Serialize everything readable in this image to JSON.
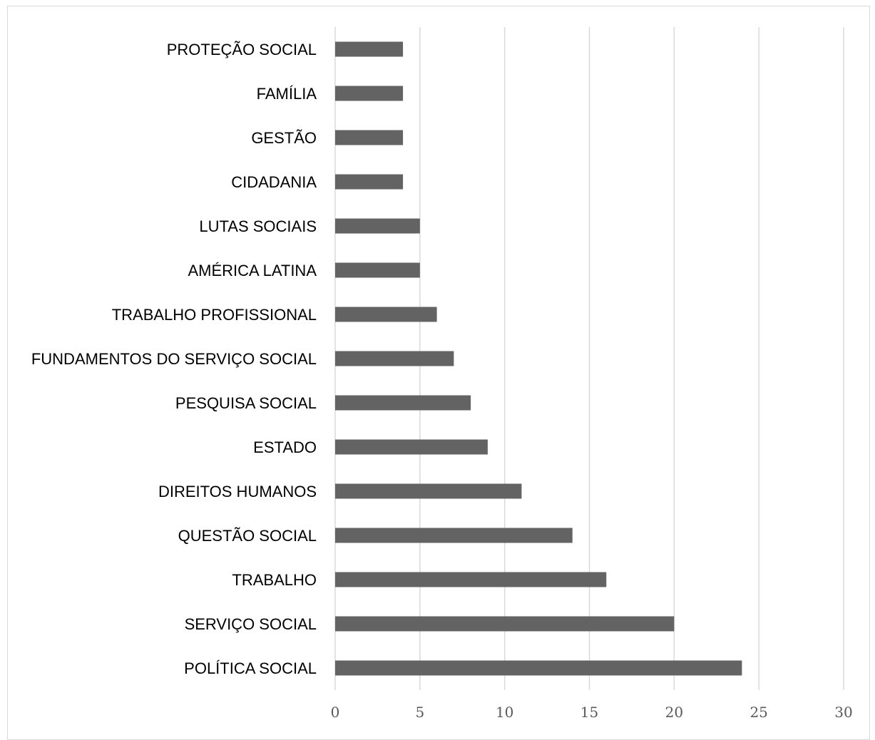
{
  "chart_data": {
    "type": "bar",
    "orientation": "horizontal",
    "categories": [
      "POLÍTICA SOCIAL",
      "SERVIÇO SOCIAL",
      "TRABALHO",
      "QUESTÃO SOCIAL",
      "DIREITOS HUMANOS",
      "ESTADO",
      "PESQUISA SOCIAL",
      "FUNDAMENTOS DO SERVIÇO SOCIAL",
      "TRABALHO PROFISSIONAL",
      "AMÉRICA LATINA",
      "LUTAS SOCIAIS",
      "CIDADANIA",
      "GESTÃO",
      "FAMÍLIA",
      "PROTEÇÃO SOCIAL"
    ],
    "values": [
      24,
      20,
      16,
      14,
      11,
      9,
      8,
      7,
      6,
      5,
      5,
      4,
      4,
      4,
      4
    ],
    "xlim": [
      0,
      30
    ],
    "xticks": [
      0,
      5,
      10,
      15,
      20,
      25,
      30
    ],
    "grid": true,
    "bar_color": "#636363",
    "grid_color": "#d9d9d9"
  }
}
